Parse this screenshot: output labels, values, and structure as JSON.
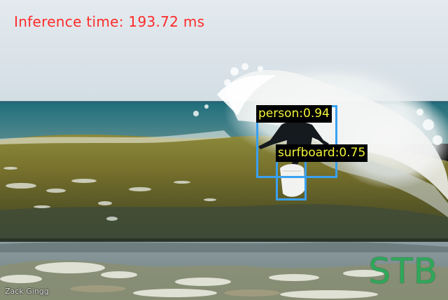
{
  "inference_text": "Inference time: 193.72 ms",
  "detections": [
    {
      "label": "person:0.94",
      "class": "person",
      "score": 0.94
    },
    {
      "label": "surfboard:0.75",
      "class": "surfboard",
      "score": 0.75
    }
  ],
  "watermark": "STB",
  "credit": "Zack Gingg",
  "colors": {
    "inference_text": "#ff2a2a",
    "box": "#3aa0f0",
    "label_text": "#f4f43a",
    "label_bg": "#000000",
    "watermark": "#2fa85a"
  }
}
